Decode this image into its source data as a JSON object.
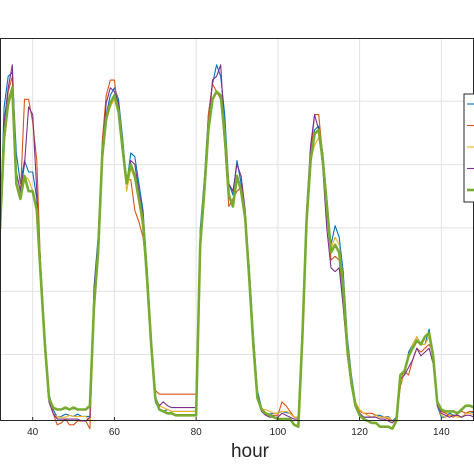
{
  "chart_data": {
    "type": "line",
    "xlabel": "hour",
    "ylabel": "",
    "title": "",
    "xlim": [
      32,
      148
    ],
    "ylim": [
      0,
      1
    ],
    "x_ticks": [
      40,
      60,
      80,
      100,
      120,
      140
    ],
    "grid": true,
    "legend": "right, clipped",
    "series": [
      {
        "color": "#0072bd",
        "width": 1.1,
        "x": [
          32,
          33,
          34,
          35,
          36,
          37,
          38,
          39,
          40,
          41,
          42,
          43,
          44,
          45,
          46,
          47,
          48,
          49,
          50,
          51,
          52,
          53,
          54,
          55,
          56,
          57,
          58,
          59,
          60,
          61,
          62,
          63,
          64,
          65,
          66,
          67,
          68,
          69,
          70,
          71,
          72,
          73,
          74,
          75,
          76,
          77,
          78,
          79,
          80,
          81,
          82,
          83,
          84,
          85,
          86,
          87,
          88,
          89,
          90,
          91,
          92,
          93,
          94,
          95,
          96,
          97,
          98,
          99,
          100,
          101,
          102,
          103,
          104,
          105,
          106,
          107,
          108,
          109,
          110,
          111,
          112,
          113,
          114,
          115,
          116,
          117,
          118,
          119,
          120,
          121,
          122,
          123,
          124,
          125,
          126,
          127,
          128,
          129,
          130,
          131,
          132,
          133,
          134,
          135,
          136,
          137,
          138,
          139,
          140,
          141,
          142,
          143,
          144,
          145,
          146,
          147,
          148
        ],
        "values": [
          0.5,
          0.82,
          0.9,
          0.91,
          0.7,
          0.62,
          0.68,
          0.65,
          0.65,
          0.58,
          0.4,
          0.22,
          0.07,
          0.03,
          0.01,
          0.012,
          0.018,
          0.015,
          0.012,
          0.018,
          0.012,
          0.012,
          0.012,
          0.35,
          0.48,
          0.72,
          0.8,
          0.85,
          0.87,
          0.84,
          0.74,
          0.62,
          0.7,
          0.69,
          0.62,
          0.55,
          0.4,
          0.22,
          0.05,
          0.028,
          0.025,
          0.03,
          0.025,
          0.025,
          0.025,
          0.025,
          0.025,
          0.025,
          0.025,
          0.5,
          0.63,
          0.8,
          0.88,
          0.93,
          0.9,
          0.8,
          0.62,
          0.59,
          0.68,
          0.62,
          0.54,
          0.4,
          0.23,
          0.08,
          0.035,
          0.02,
          0.018,
          0.02,
          0.02,
          0.025,
          0.022,
          0.02,
          0.01,
          0.01,
          0.25,
          0.52,
          0.71,
          0.76,
          0.77,
          0.7,
          0.58,
          0.46,
          0.51,
          0.48,
          0.39,
          0.22,
          0.12,
          0.05,
          0.02,
          0.01,
          0.01,
          0.01,
          0.015,
          0.015,
          0.01,
          0.012,
          0.0,
          0.01,
          0.12,
          0.12,
          0.18,
          0.2,
          0.22,
          0.2,
          0.2,
          0.24,
          0.16,
          0.04,
          0.01,
          0.01,
          0.02,
          0.015,
          0.015,
          0.01,
          0.02,
          0.025,
          0.02
        ]
      },
      {
        "color": "#d95319",
        "width": 1.1,
        "x": [
          32,
          33,
          34,
          35,
          36,
          37,
          38,
          39,
          40,
          41,
          42,
          43,
          44,
          45,
          46,
          47,
          48,
          49,
          50,
          51,
          52,
          53,
          54,
          55,
          56,
          57,
          58,
          59,
          60,
          61,
          62,
          63,
          64,
          65,
          66,
          67,
          68,
          69,
          70,
          71,
          72,
          73,
          74,
          75,
          76,
          77,
          78,
          79,
          80,
          81,
          82,
          83,
          84,
          85,
          86,
          87,
          88,
          89,
          90,
          91,
          92,
          93,
          94,
          95,
          96,
          97,
          98,
          99,
          100,
          101,
          102,
          103,
          104,
          105,
          106,
          107,
          108,
          109,
          110,
          111,
          112,
          113,
          114,
          115,
          116,
          117,
          118,
          119,
          120,
          121,
          122,
          123,
          124,
          125,
          126,
          127,
          128,
          129,
          130,
          131,
          132,
          133,
          134,
          135,
          136,
          137,
          138,
          139,
          140,
          141,
          142,
          143,
          144,
          145,
          146,
          147,
          148
        ],
        "values": [
          0.55,
          0.75,
          0.86,
          0.9,
          0.62,
          0.59,
          0.84,
          0.84,
          0.78,
          0.68,
          0.38,
          0.2,
          0.06,
          0.02,
          -0.01,
          -0.005,
          0.005,
          -0.01,
          -0.01,
          0.0,
          0.0,
          0.0,
          -0.02,
          0.28,
          0.43,
          0.73,
          0.85,
          0.89,
          0.89,
          0.8,
          0.7,
          0.63,
          0.63,
          0.55,
          0.52,
          0.48,
          0.38,
          0.2,
          0.08,
          0.07,
          0.07,
          0.07,
          0.07,
          0.07,
          0.07,
          0.07,
          0.07,
          0.07,
          0.07,
          0.48,
          0.6,
          0.8,
          0.88,
          0.86,
          0.84,
          0.72,
          0.56,
          0.58,
          0.6,
          0.61,
          0.53,
          0.38,
          0.2,
          0.06,
          0.025,
          0.02,
          0.015,
          0.015,
          0.015,
          0.05,
          0.04,
          0.025,
          0.01,
          0.01,
          0.2,
          0.53,
          0.7,
          0.8,
          0.8,
          0.69,
          0.56,
          0.42,
          0.43,
          0.42,
          0.3,
          0.17,
          0.09,
          0.04,
          0.025,
          0.02,
          0.02,
          0.02,
          0.015,
          0.01,
          0.01,
          0.005,
          0.0,
          0.005,
          0.09,
          0.13,
          0.12,
          0.16,
          0.19,
          0.18,
          0.19,
          0.2,
          0.18,
          0.04,
          0.025,
          0.02,
          0.015,
          0.01,
          0.02,
          0.025,
          0.02,
          0.025,
          0.025
        ]
      },
      {
        "color": "#edb120",
        "width": 1.1,
        "x": [
          32,
          33,
          34,
          35,
          36,
          37,
          38,
          39,
          40,
          41,
          42,
          43,
          44,
          45,
          46,
          47,
          48,
          49,
          50,
          51,
          52,
          53,
          54,
          55,
          56,
          57,
          58,
          59,
          60,
          61,
          62,
          63,
          64,
          65,
          66,
          67,
          68,
          69,
          70,
          71,
          72,
          73,
          74,
          75,
          76,
          77,
          78,
          79,
          80,
          81,
          82,
          83,
          84,
          85,
          86,
          87,
          88,
          89,
          90,
          91,
          92,
          93,
          94,
          95,
          96,
          97,
          98,
          99,
          100,
          101,
          102,
          103,
          104,
          105,
          106,
          107,
          108,
          109,
          110,
          111,
          112,
          113,
          114,
          115,
          116,
          117,
          118,
          119,
          120,
          121,
          122,
          123,
          124,
          125,
          126,
          127,
          128,
          129,
          130,
          131,
          132,
          133,
          134,
          135,
          136,
          137,
          138,
          139,
          140,
          141,
          142,
          143,
          144,
          145,
          146,
          147,
          148
        ],
        "values": [
          0.5,
          0.72,
          0.82,
          0.86,
          0.62,
          0.58,
          0.64,
          0.63,
          0.6,
          0.56,
          0.38,
          0.2,
          0.05,
          0.02,
          0.01,
          0.01,
          0.01,
          0.015,
          0.012,
          0.012,
          0.012,
          0.012,
          0.0,
          0.3,
          0.43,
          0.68,
          0.78,
          0.82,
          0.84,
          0.8,
          0.7,
          0.6,
          0.66,
          0.63,
          0.57,
          0.5,
          0.38,
          0.2,
          0.06,
          0.04,
          0.035,
          0.03,
          0.025,
          0.025,
          0.025,
          0.025,
          0.025,
          0.025,
          0.025,
          0.45,
          0.58,
          0.76,
          0.84,
          0.86,
          0.85,
          0.76,
          0.6,
          0.56,
          0.64,
          0.6,
          0.52,
          0.38,
          0.21,
          0.06,
          0.03,
          0.03,
          0.025,
          0.02,
          0.02,
          0.025,
          0.025,
          0.02,
          0.01,
          0.01,
          0.22,
          0.5,
          0.68,
          0.72,
          0.74,
          0.68,
          0.58,
          0.45,
          0.48,
          0.46,
          0.37,
          0.2,
          0.11,
          0.05,
          0.03,
          0.02,
          0.015,
          0.01,
          0.015,
          0.01,
          0.01,
          0.01,
          0.0,
          0.005,
          0.1,
          0.13,
          0.17,
          0.2,
          0.22,
          0.2,
          0.2,
          0.22,
          0.16,
          0.05,
          0.015,
          0.01,
          0.015,
          0.015,
          0.01,
          0.01,
          0.02,
          0.02,
          0.015
        ]
      },
      {
        "color": "#7e2f8e",
        "width": 1.1,
        "x": [
          32,
          33,
          34,
          35,
          36,
          37,
          38,
          39,
          40,
          41,
          42,
          43,
          44,
          45,
          46,
          47,
          48,
          49,
          50,
          51,
          52,
          53,
          54,
          55,
          56,
          57,
          58,
          59,
          60,
          61,
          62,
          63,
          64,
          65,
          66,
          67,
          68,
          69,
          70,
          71,
          72,
          73,
          74,
          75,
          76,
          77,
          78,
          79,
          80,
          81,
          82,
          83,
          84,
          85,
          86,
          87,
          88,
          89,
          90,
          91,
          92,
          93,
          94,
          95,
          96,
          97,
          98,
          99,
          100,
          101,
          102,
          103,
          104,
          105,
          106,
          107,
          108,
          109,
          110,
          111,
          112,
          113,
          114,
          115,
          116,
          117,
          118,
          119,
          120,
          121,
          122,
          123,
          124,
          125,
          126,
          127,
          128,
          129,
          130,
          131,
          132,
          133,
          134,
          135,
          136,
          137,
          138,
          139,
          140,
          141,
          142,
          143,
          144,
          145,
          146,
          147,
          148
        ],
        "values": [
          0.48,
          0.78,
          0.87,
          0.93,
          0.65,
          0.6,
          0.67,
          0.82,
          0.8,
          0.6,
          0.36,
          0.18,
          0.05,
          0.02,
          0.005,
          0.005,
          0.005,
          0.005,
          0.005,
          0.005,
          0.0,
          0.0,
          0.01,
          0.34,
          0.47,
          0.7,
          0.83,
          0.87,
          0.86,
          0.83,
          0.72,
          0.62,
          0.68,
          0.67,
          0.6,
          0.54,
          0.38,
          0.18,
          0.06,
          0.04,
          0.05,
          0.04,
          0.035,
          0.035,
          0.035,
          0.035,
          0.035,
          0.035,
          0.035,
          0.48,
          0.6,
          0.76,
          0.89,
          0.9,
          0.93,
          0.75,
          0.62,
          0.6,
          0.67,
          0.64,
          0.55,
          0.38,
          0.2,
          0.06,
          0.025,
          0.015,
          0.01,
          0.01,
          0.01,
          0.02,
          0.015,
          0.01,
          0.005,
          0.005,
          0.24,
          0.55,
          0.72,
          0.8,
          0.76,
          0.66,
          0.5,
          0.4,
          0.39,
          0.4,
          0.3,
          0.18,
          0.09,
          0.04,
          0.02,
          0.01,
          0.01,
          0.01,
          0.01,
          0.005,
          0.005,
          0.0,
          -0.005,
          0.005,
          0.11,
          0.12,
          0.14,
          0.16,
          0.19,
          0.17,
          0.18,
          0.19,
          0.15,
          0.045,
          0.02,
          0.015,
          0.01,
          0.015,
          0.015,
          0.01,
          0.015,
          0.015,
          0.01
        ]
      },
      {
        "color": "#77ac30",
        "width": 2.6,
        "x": [
          32,
          33,
          34,
          35,
          36,
          37,
          38,
          39,
          40,
          41,
          42,
          43,
          44,
          45,
          46,
          47,
          48,
          49,
          50,
          51,
          52,
          53,
          54,
          55,
          56,
          57,
          58,
          59,
          60,
          61,
          62,
          63,
          64,
          65,
          66,
          67,
          68,
          69,
          70,
          71,
          72,
          73,
          74,
          75,
          76,
          77,
          78,
          79,
          80,
          81,
          82,
          83,
          84,
          85,
          86,
          87,
          88,
          89,
          90,
          91,
          92,
          93,
          94,
          95,
          96,
          97,
          98,
          99,
          100,
          101,
          102,
          103,
          104,
          105,
          106,
          107,
          108,
          109,
          110,
          111,
          112,
          113,
          114,
          115,
          116,
          117,
          118,
          119,
          120,
          121,
          122,
          123,
          124,
          125,
          126,
          127,
          128,
          129,
          130,
          131,
          132,
          133,
          134,
          135,
          136,
          137,
          138,
          139,
          140,
          141,
          142,
          143,
          144,
          145,
          146,
          147,
          148
        ],
        "values": [
          0.5,
          0.74,
          0.83,
          0.87,
          0.62,
          0.58,
          0.64,
          0.6,
          0.6,
          0.55,
          0.37,
          0.2,
          0.06,
          0.035,
          0.03,
          0.03,
          0.035,
          0.03,
          0.035,
          0.03,
          0.03,
          0.03,
          0.04,
          0.3,
          0.44,
          0.69,
          0.79,
          0.83,
          0.85,
          0.81,
          0.71,
          0.62,
          0.67,
          0.64,
          0.58,
          0.52,
          0.37,
          0.2,
          0.06,
          0.03,
          0.025,
          0.02,
          0.02,
          0.015,
          0.015,
          0.015,
          0.015,
          0.015,
          0.015,
          0.46,
          0.6,
          0.76,
          0.84,
          0.86,
          0.85,
          0.75,
          0.59,
          0.56,
          0.64,
          0.6,
          0.53,
          0.37,
          0.2,
          0.06,
          0.03,
          0.02,
          0.015,
          0.01,
          0.005,
          0.005,
          0.005,
          0.005,
          -0.01,
          -0.015,
          0.22,
          0.52,
          0.68,
          0.75,
          0.76,
          0.68,
          0.56,
          0.44,
          0.46,
          0.44,
          0.35,
          0.19,
          0.1,
          0.04,
          0.015,
          0.005,
          0.0,
          -0.005,
          -0.005,
          -0.015,
          -0.015,
          -0.015,
          -0.02,
          0.0,
          0.12,
          0.13,
          0.17,
          0.19,
          0.21,
          0.2,
          0.22,
          0.23,
          0.17,
          0.05,
          0.03,
          0.025,
          0.025,
          0.025,
          0.02,
          0.03,
          0.04,
          0.04,
          0.035
        ]
      }
    ]
  }
}
